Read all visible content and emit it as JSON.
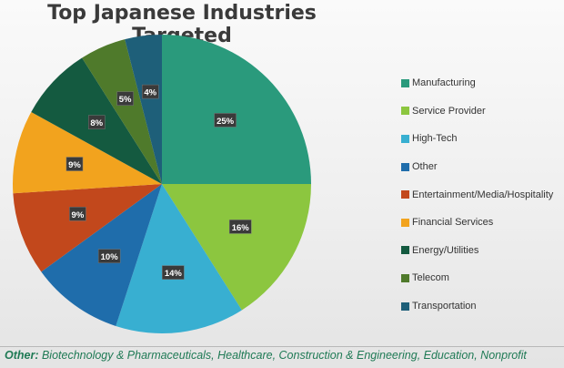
{
  "chart_data": {
    "type": "pie",
    "title": "Top Japanese Industries Targeted",
    "legend_position": "right",
    "slices": [
      {
        "label": "Manufacturing",
        "value": 25,
        "display": "25%",
        "color": "#2a9a7c"
      },
      {
        "label": "Service Provider",
        "value": 16,
        "display": "16%",
        "color": "#8cc63f"
      },
      {
        "label": "High-Tech",
        "value": 14,
        "display": "14%",
        "color": "#38afd1"
      },
      {
        "label": "Other",
        "value": 10,
        "display": "10%",
        "color": "#1f6dab"
      },
      {
        "label": "Entertainment/Media/Hospitality",
        "value": 9,
        "display": "9%",
        "color": "#c2481c"
      },
      {
        "label": "Financial Services",
        "value": 9,
        "display": "9%",
        "color": "#f2a31e"
      },
      {
        "label": "Energy/Utilities",
        "value": 8,
        "display": "8%",
        "color": "#145a40"
      },
      {
        "label": "Telecom",
        "value": 5,
        "display": "5%",
        "color": "#4f7a2b"
      },
      {
        "label": "Transportation",
        "value": 4,
        "display": "4%",
        "color": "#1e5f79"
      }
    ]
  },
  "footer": {
    "label": "Other:",
    "text": " Biotechnology & Pharmaceuticals, Healthcare, Construction & Engineering, Education, Nonprofit"
  }
}
